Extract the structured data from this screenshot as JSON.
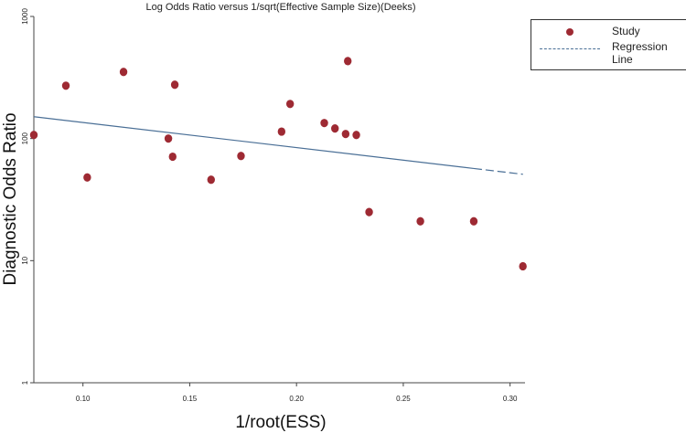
{
  "chart_data": {
    "type": "scatter",
    "title": "Log Odds Ratio versus 1/sqrt(Effective Sample Size)(Deeks)",
    "xlabel": "1/root(ESS)",
    "ylabel": "Diagnostic Odds Ratio",
    "xlim": [
      0.077,
      0.307
    ],
    "ylim": [
      1,
      1000
    ],
    "yscale": "log",
    "xticks": [
      "0.10",
      "0.15",
      "0.20",
      "0.25",
      "0.30"
    ],
    "yticks": [
      "1",
      "10",
      "100",
      "1000"
    ],
    "grid": false,
    "legend_position": "top-right",
    "series": [
      {
        "name": "Study",
        "type": "scatter",
        "color": "#9e2a33",
        "x": [
          0.077,
          0.092,
          0.102,
          0.119,
          0.143,
          0.14,
          0.142,
          0.16,
          0.174,
          0.193,
          0.197,
          0.213,
          0.218,
          0.223,
          0.224,
          0.228,
          0.234,
          0.258,
          0.283,
          0.306
        ],
        "y": [
          107,
          271,
          48,
          351,
          276,
          100,
          71,
          46,
          72,
          114,
          192,
          134,
          121,
          109,
          431,
          107,
          25,
          21,
          21,
          9
        ]
      },
      {
        "name": "Regression Line",
        "type": "line",
        "color": "#4a6f96",
        "x": [
          0.077,
          0.306
        ],
        "y": [
          151,
          51
        ]
      }
    ]
  }
}
